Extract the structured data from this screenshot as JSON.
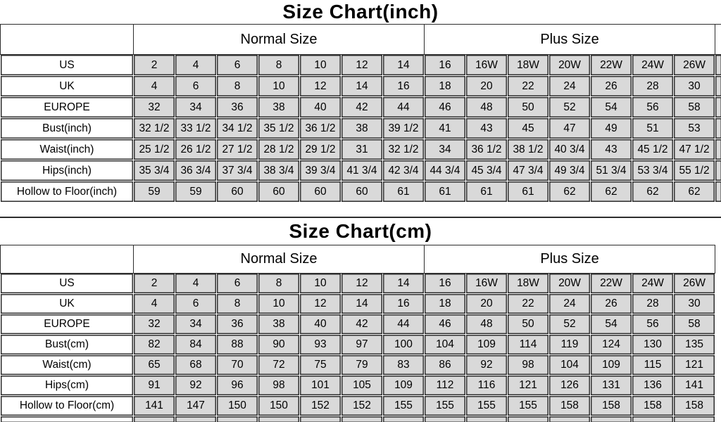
{
  "colors": {
    "page_bg": "#ffffff",
    "cell_fill": "#d9d9d9",
    "border": "#2d2d2d",
    "text": "#000000"
  },
  "chart_data": [
    {
      "type": "table",
      "title": "Size Chart(inch)",
      "group_headers": [
        "Normal Size",
        "Plus Size"
      ],
      "group_spans": [
        7,
        7
      ],
      "column_headers": [],
      "rows": [
        {
          "label": "US",
          "values": [
            "2",
            "4",
            "6",
            "8",
            "10",
            "12",
            "14",
            "16",
            "16W",
            "18W",
            "20W",
            "22W",
            "24W",
            "26W"
          ]
        },
        {
          "label": "UK",
          "values": [
            "4",
            "6",
            "8",
            "10",
            "12",
            "14",
            "16",
            "18",
            "20",
            "22",
            "24",
            "26",
            "28",
            "30"
          ]
        },
        {
          "label": "EUROPE",
          "values": [
            "32",
            "34",
            "36",
            "38",
            "40",
            "42",
            "44",
            "46",
            "48",
            "50",
            "52",
            "54",
            "56",
            "58"
          ]
        },
        {
          "label": "Bust(inch)",
          "values": [
            "32 1/2",
            "33 1/2",
            "34 1/2",
            "35 1/2",
            "36 1/2",
            "38",
            "39 1/2",
            "41",
            "43",
            "45",
            "47",
            "49",
            "51",
            "53"
          ]
        },
        {
          "label": "Waist(inch)",
          "values": [
            "25 1/2",
            "26 1/2",
            "27 1/2",
            "28 1/2",
            "29 1/2",
            "31",
            "32 1/2",
            "34",
            "36 1/2",
            "38 1/2",
            "40 3/4",
            "43",
            "45 1/2",
            "47 1/2"
          ]
        },
        {
          "label": "Hips(inch)",
          "values": [
            "35 3/4",
            "36 3/4",
            "37 3/4",
            "38 3/4",
            "39 3/4",
            "41 3/4",
            "42 3/4",
            "44 3/4",
            "45 3/4",
            "47 3/4",
            "49 3/4",
            "51 3/4",
            "53 3/4",
            "55 1/2"
          ]
        },
        {
          "label": "Hollow to Floor(inch)",
          "values": [
            "59",
            "59",
            "60",
            "60",
            "60",
            "60",
            "61",
            "61",
            "61",
            "61",
            "62",
            "62",
            "62",
            "62"
          ]
        }
      ]
    },
    {
      "type": "table",
      "title": "Size Chart(cm)",
      "group_headers": [
        "Normal Size",
        "Plus Size"
      ],
      "group_spans": [
        7,
        7
      ],
      "column_headers": [],
      "rows": [
        {
          "label": "US",
          "values": [
            "2",
            "4",
            "6",
            "8",
            "10",
            "12",
            "14",
            "16",
            "16W",
            "18W",
            "20W",
            "22W",
            "24W",
            "26W"
          ]
        },
        {
          "label": "UK",
          "values": [
            "4",
            "6",
            "8",
            "10",
            "12",
            "14",
            "16",
            "18",
            "20",
            "22",
            "24",
            "26",
            "28",
            "30"
          ]
        },
        {
          "label": "EUROPE",
          "values": [
            "32",
            "34",
            "36",
            "38",
            "40",
            "42",
            "44",
            "46",
            "48",
            "50",
            "52",
            "54",
            "56",
            "58"
          ]
        },
        {
          "label": "Bust(cm)",
          "values": [
            "82",
            "84",
            "88",
            "90",
            "93",
            "97",
            "100",
            "104",
            "109",
            "114",
            "119",
            "124",
            "130",
            "135"
          ]
        },
        {
          "label": "Waist(cm)",
          "values": [
            "65",
            "68",
            "70",
            "72",
            "75",
            "79",
            "83",
            "86",
            "92",
            "98",
            "104",
            "109",
            "115",
            "121"
          ]
        },
        {
          "label": "Hips(cm)",
          "values": [
            "91",
            "92",
            "96",
            "98",
            "101",
            "105",
            "109",
            "112",
            "116",
            "121",
            "126",
            "131",
            "136",
            "141"
          ]
        },
        {
          "label": "Hollow to Floor(cm)",
          "values": [
            "141",
            "147",
            "150",
            "150",
            "152",
            "152",
            "155",
            "155",
            "155",
            "155",
            "158",
            "158",
            "158",
            "158"
          ]
        }
      ]
    }
  ]
}
